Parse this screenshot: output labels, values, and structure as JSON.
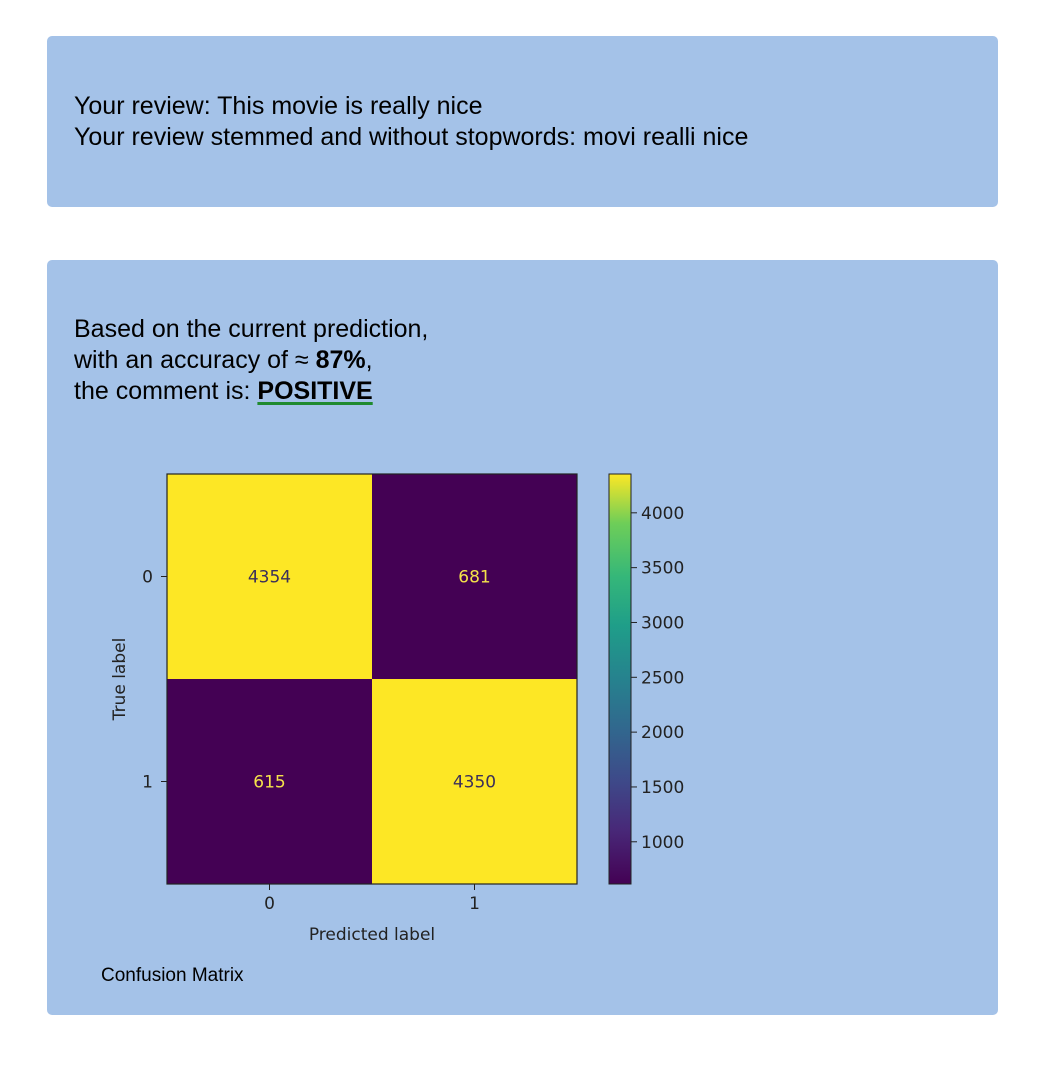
{
  "review_panel": {
    "review_line": "Your review: This movie is really nice",
    "stemmed_line": "Your review stemmed and without stopwords: movi realli nice"
  },
  "result_panel": {
    "line1": "Based on the current prediction,",
    "line2_prefix": "with an accuracy of ≈ ",
    "accuracy": "87%",
    "line2_suffix": ",",
    "line3_prefix": "the comment is: ",
    "sentiment": "POSITIVE",
    "sentiment_color": "#1f8a2e",
    "caption": "Confusion Matrix"
  },
  "chart_data": {
    "type": "heatmap",
    "xlabel": "Predicted label",
    "ylabel": "True label",
    "x_ticks": [
      "0",
      "1"
    ],
    "y_ticks": [
      "0",
      "1"
    ],
    "matrix": [
      [
        4354,
        681
      ],
      [
        615,
        4350
      ]
    ],
    "colormap": "viridis",
    "colorbar": {
      "min": 615,
      "max": 4354,
      "ticks": [
        "1000",
        "1500",
        "2000",
        "2500",
        "3000",
        "3500",
        "4000"
      ]
    },
    "colors": {
      "high": "#fde725",
      "low": "#440154",
      "text_on_high": "#3b2f5a",
      "text_on_low": "#f5e34a"
    }
  }
}
